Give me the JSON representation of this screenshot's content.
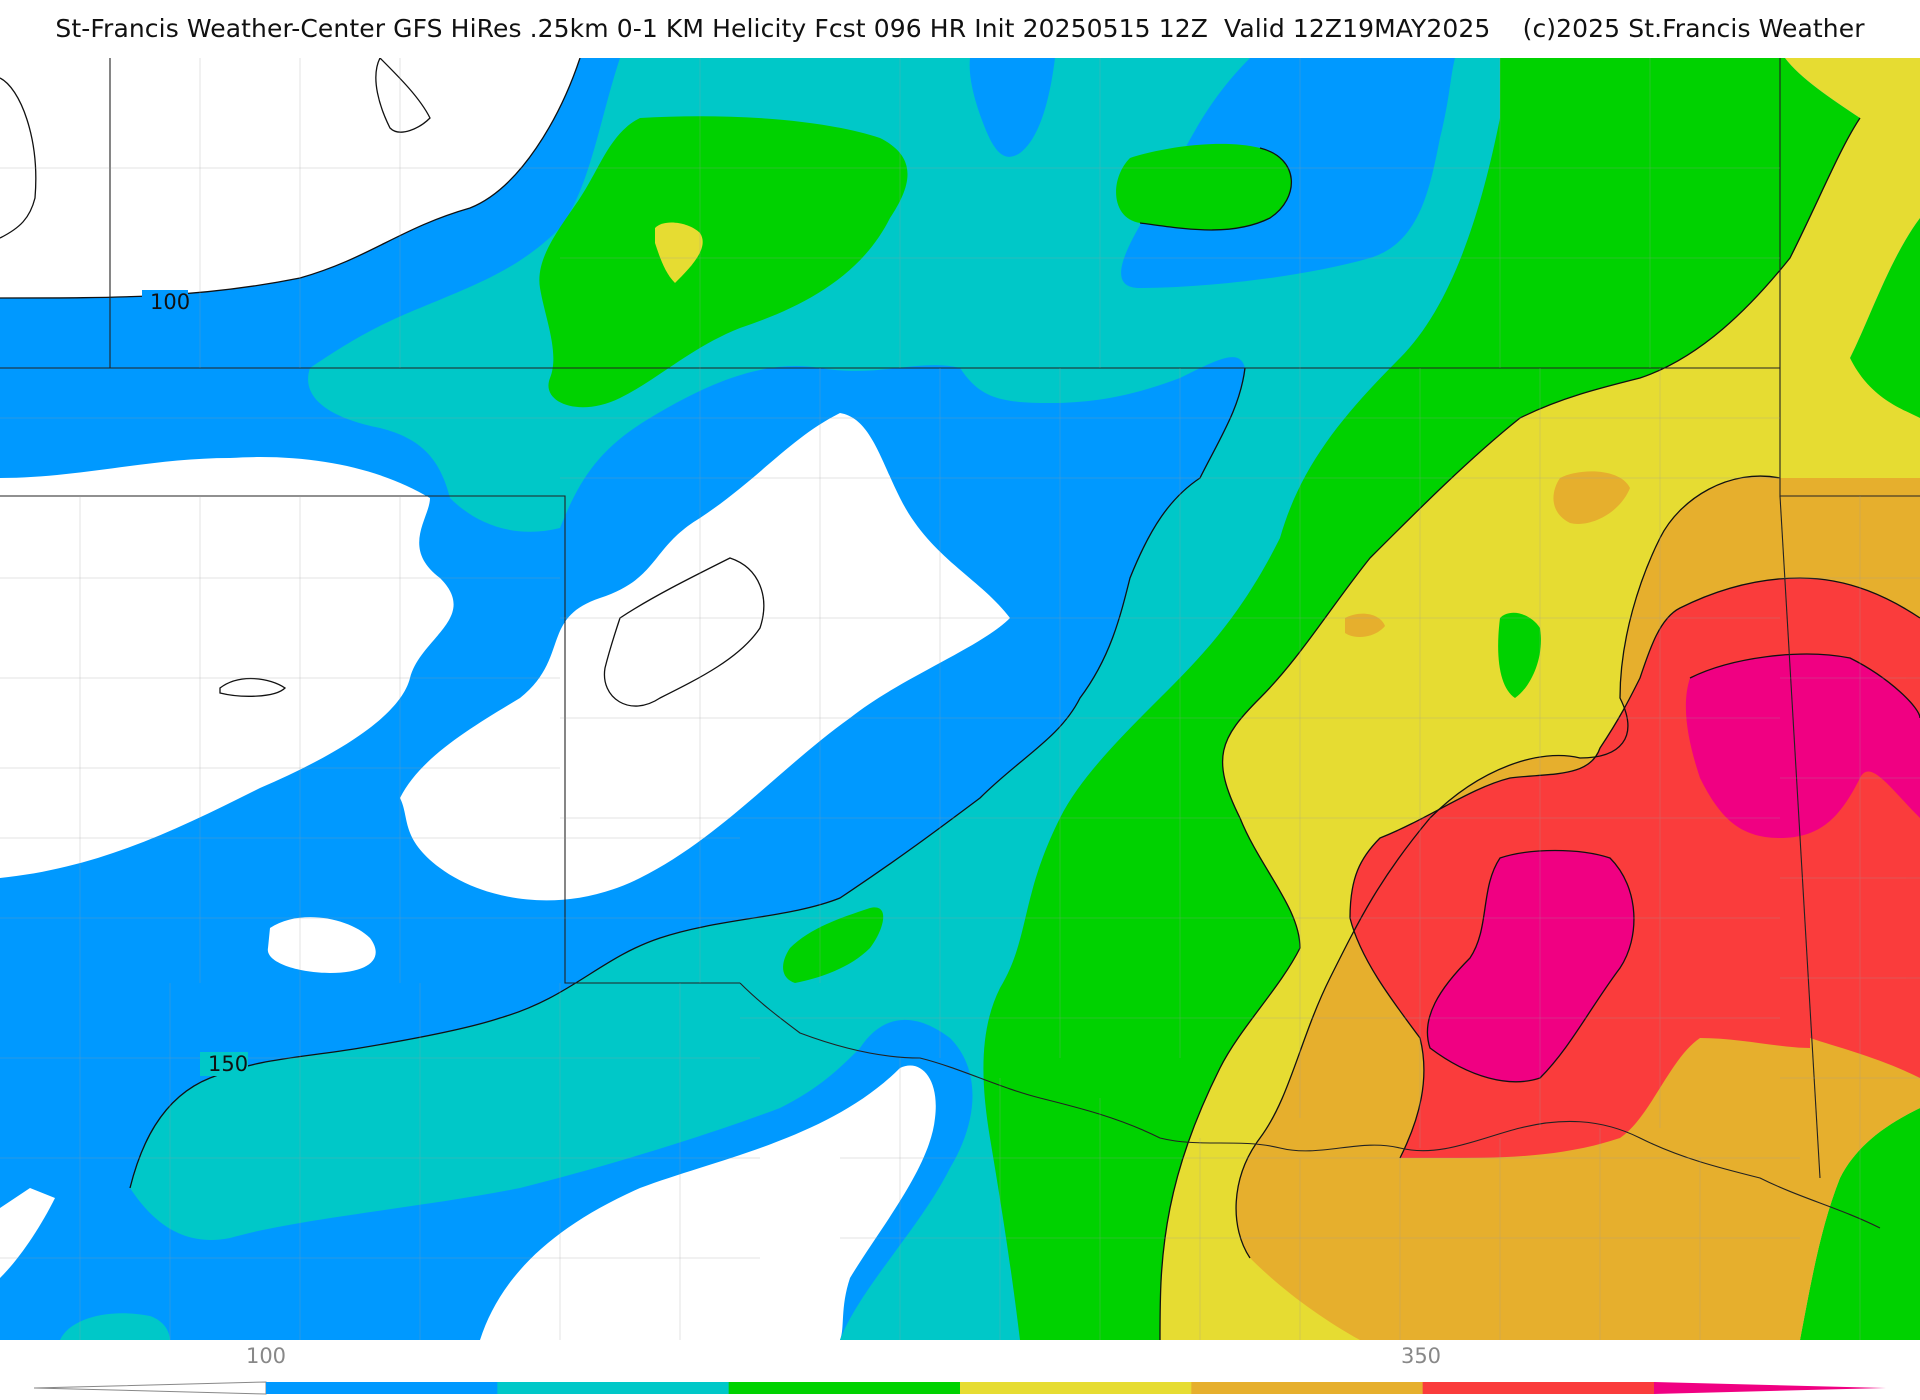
{
  "title": {
    "main": "St-Francis Weather-Center GFS HiRes .25km 0-1 KM Helicity Fcst 096 HR Init 20250515 12Z  Valid 12Z19MAY2025",
    "copyright": "(c)2025 St.Francis Weather"
  },
  "contour_labels": {
    "label_100": "100",
    "label_150": "150"
  },
  "colorbar": {
    "ticks": [
      {
        "value": "100",
        "name": "tick-100"
      },
      {
        "value": "350",
        "name": "tick-350"
      }
    ],
    "colors": [
      "#ffffff",
      "#0099ff",
      "#00c8c8",
      "#00d200",
      "#e6dc32",
      "#e6af2d",
      "#fa3c3c",
      "#f00082"
    ]
  },
  "legend_bins": [
    {
      "name": "below-100",
      "color": "#ffffff"
    },
    {
      "name": "100-150",
      "color": "#0099ff"
    },
    {
      "name": "150-200",
      "color": "#00c8c8"
    },
    {
      "name": "200-250",
      "color": "#00d200"
    },
    {
      "name": "250-300",
      "color": "#e6dc32"
    },
    {
      "name": "300-350",
      "color": "#e6af2d"
    },
    {
      "name": "350-400",
      "color": "#fa3c3c"
    },
    {
      "name": "above-400",
      "color": "#f00082"
    }
  ]
}
